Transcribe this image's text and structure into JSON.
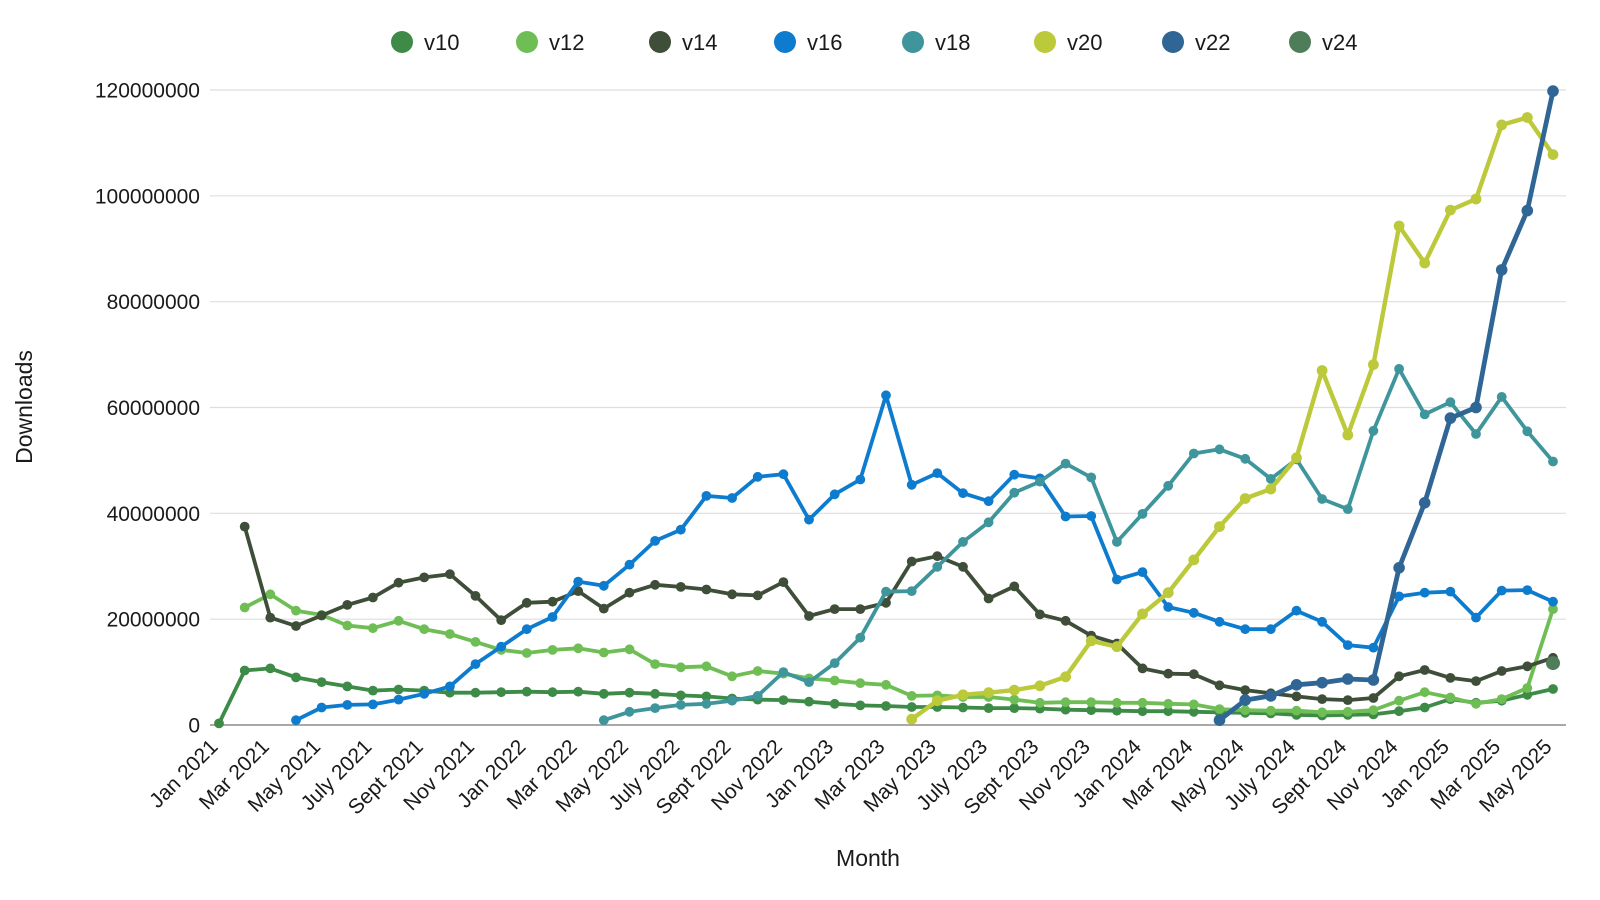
{
  "chart_data": {
    "type": "line",
    "title": "",
    "xlabel": "Month",
    "ylabel": "Downloads",
    "ylim": [
      0,
      120000000
    ],
    "y_tick_interval": 20000000,
    "y_tick_labels": [
      "0",
      "20000000",
      "40000000",
      "60000000",
      "80000000",
      "100000000",
      "120000000"
    ],
    "x_tick_every": 2,
    "x_tick_labels": [
      "Jan 2021",
      "Mar 2021",
      "May 2021",
      "July 2021",
      "Sept 2021",
      "Nov 2021",
      "Jan 2022",
      "Mar 2022",
      "May 2022",
      "July 2022",
      "Sept 2022",
      "Nov 2022",
      "Jan 2023",
      "Mar 2023",
      "May 2023",
      "July 2023",
      "Sept 2023",
      "Nov 2023",
      "Jan 2024",
      "Mar 2024",
      "May 2024",
      "July 2024",
      "Sept 2024",
      "Nov 2024",
      "Jan 2025",
      "Mar 2025",
      "May 2025"
    ],
    "grid": "horizontal",
    "legend_position": "top-center",
    "values_unit": "millions of downloads",
    "categories": [
      "Jan 2021",
      "Feb 2021",
      "Mar 2021",
      "Apr 2021",
      "May 2021",
      "Jun 2021",
      "Jul 2021",
      "Aug 2021",
      "Sep 2021",
      "Oct 2021",
      "Nov 2021",
      "Dec 2021",
      "Jan 2022",
      "Feb 2022",
      "Mar 2022",
      "Apr 2022",
      "May 2022",
      "Jun 2022",
      "Jul 2022",
      "Aug 2022",
      "Sep 2022",
      "Oct 2022",
      "Nov 2022",
      "Dec 2022",
      "Jan 2023",
      "Feb 2023",
      "Mar 2023",
      "Apr 2023",
      "May 2023",
      "Jun 2023",
      "Jul 2023",
      "Aug 2023",
      "Sep 2023",
      "Oct 2023",
      "Nov 2023",
      "Dec 2023",
      "Jan 2024",
      "Feb 2024",
      "Mar 2024",
      "Apr 2024",
      "May 2024",
      "Jun 2024",
      "Jul 2024",
      "Aug 2024",
      "Sep 2024",
      "Oct 2024",
      "Nov 2024",
      "Dec 2024",
      "Jan 2025",
      "Feb 2025",
      "Mar 2025",
      "Apr 2025",
      "May 2025"
    ],
    "series": [
      {
        "name": "v10",
        "color": "#3d8b47",
        "values": [
          0.3,
          10.3,
          10.7,
          9.0,
          8.1,
          7.3,
          6.5,
          6.7,
          6.5,
          6.1,
          6.1,
          6.2,
          6.3,
          6.2,
          6.3,
          5.9,
          6.1,
          5.9,
          5.6,
          5.4,
          5.0,
          4.8,
          4.7,
          4.4,
          4.0,
          3.7,
          3.6,
          3.4,
          3.4,
          3.3,
          3.2,
          3.2,
          3.1,
          2.9,
          2.8,
          2.7,
          2.6,
          2.6,
          2.5,
          2.4,
          2.3,
          2.2,
          1.9,
          1.8,
          1.9,
          2.0,
          2.6,
          3.3,
          4.9,
          4.2,
          4.6,
          5.7,
          6.8
        ]
      },
      {
        "name": "v12",
        "color": "#6fbe55",
        "values": [
          null,
          22.2,
          24.7,
          21.6,
          20.8,
          18.8,
          18.3,
          19.7,
          18.1,
          17.2,
          15.7,
          14.2,
          13.6,
          14.2,
          14.5,
          13.7,
          14.3,
          11.5,
          10.9,
          11.1,
          9.2,
          10.2,
          9.7,
          8.8,
          8.4,
          7.9,
          7.6,
          5.5,
          5.6,
          5.3,
          5.3,
          4.8,
          4.2,
          4.3,
          4.3,
          4.2,
          4.2,
          4.0,
          3.9,
          3.0,
          2.8,
          2.7,
          2.7,
          2.4,
          2.5,
          2.8,
          4.6,
          6.2,
          5.2,
          4.0,
          4.9,
          7.0,
          21.9
        ]
      },
      {
        "name": "v14",
        "color": "#3f4e38",
        "values": [
          null,
          37.5,
          20.3,
          18.7,
          20.7,
          22.7,
          24.1,
          26.9,
          27.9,
          28.5,
          24.4,
          19.8,
          23.1,
          23.3,
          25.3,
          22.0,
          25.0,
          26.5,
          26.1,
          25.6,
          24.7,
          24.5,
          27.0,
          20.6,
          21.9,
          21.9,
          23.1,
          30.9,
          31.9,
          29.9,
          23.9,
          26.2,
          20.9,
          19.7,
          16.9,
          15.4,
          10.7,
          9.7,
          9.6,
          7.5,
          6.6,
          6.0,
          5.4,
          4.9,
          4.7,
          5.1,
          9.2,
          10.4,
          8.9,
          8.3,
          10.2,
          11.1,
          12.7
        ]
      },
      {
        "name": "v16",
        "color": "#0e7cce",
        "values": [
          null,
          null,
          null,
          0.9,
          3.3,
          3.8,
          3.9,
          4.8,
          5.9,
          7.3,
          11.5,
          14.8,
          18.1,
          20.4,
          27.1,
          26.3,
          30.3,
          34.8,
          36.9,
          43.3,
          42.9,
          46.9,
          47.4,
          38.8,
          43.6,
          46.4,
          62.3,
          45.4,
          47.6,
          43.8,
          42.3,
          47.3,
          46.6,
          39.4,
          39.5,
          27.5,
          28.9,
          22.3,
          21.2,
          19.5,
          18.1,
          18.1,
          21.6,
          19.5,
          15.1,
          14.6,
          24.3,
          25.0,
          25.2,
          20.3,
          25.4,
          25.5,
          23.3
        ]
      },
      {
        "name": "v18",
        "color": "#3e959b",
        "values": [
          null,
          null,
          null,
          null,
          null,
          null,
          null,
          null,
          null,
          null,
          null,
          null,
          null,
          null,
          null,
          0.9,
          2.5,
          3.2,
          3.8,
          4.0,
          4.6,
          5.5,
          10.0,
          8.1,
          11.7,
          16.5,
          25.2,
          25.3,
          29.9,
          34.6,
          38.3,
          43.9,
          46.0,
          49.4,
          46.8,
          34.6,
          39.9,
          45.2,
          51.3,
          52.1,
          50.3,
          46.5,
          50.2,
          42.7,
          40.8,
          55.6,
          67.3,
          58.7,
          61.0,
          55.0,
          62.0,
          55.5,
          49.8
        ]
      },
      {
        "name": "v20",
        "color": "#bcc93a",
        "values": [
          null,
          null,
          null,
          null,
          null,
          null,
          null,
          null,
          null,
          null,
          null,
          null,
          null,
          null,
          null,
          null,
          null,
          null,
          null,
          null,
          null,
          null,
          null,
          null,
          null,
          null,
          null,
          1.1,
          4.6,
          5.7,
          6.1,
          6.6,
          7.4,
          9.1,
          15.9,
          14.8,
          21.0,
          25.0,
          31.2,
          37.5,
          42.8,
          44.6,
          50.5,
          67.0,
          54.8,
          68.1,
          94.3,
          87.3,
          97.3,
          99.4,
          113.4,
          114.8,
          107.8
        ]
      },
      {
        "name": "v22",
        "color": "#2f6695",
        "values": [
          null,
          null,
          null,
          null,
          null,
          null,
          null,
          null,
          null,
          null,
          null,
          null,
          null,
          null,
          null,
          null,
          null,
          null,
          null,
          null,
          null,
          null,
          null,
          null,
          null,
          null,
          null,
          null,
          null,
          null,
          null,
          null,
          null,
          null,
          null,
          null,
          null,
          null,
          null,
          0.9,
          4.7,
          5.5,
          7.6,
          8.0,
          8.7,
          8.5,
          29.7,
          42.0,
          58.0,
          60.0,
          86.0,
          97.2,
          119.8
        ]
      },
      {
        "name": "v24",
        "color": "#4f7d5a",
        "values": [
          null,
          null,
          null,
          null,
          null,
          null,
          null,
          null,
          null,
          null,
          null,
          null,
          null,
          null,
          null,
          null,
          null,
          null,
          null,
          null,
          null,
          null,
          null,
          null,
          null,
          null,
          null,
          null,
          null,
          null,
          null,
          null,
          null,
          null,
          null,
          null,
          null,
          null,
          null,
          null,
          null,
          null,
          null,
          null,
          null,
          null,
          null,
          null,
          null,
          null,
          null,
          null,
          11.7
        ]
      }
    ]
  }
}
